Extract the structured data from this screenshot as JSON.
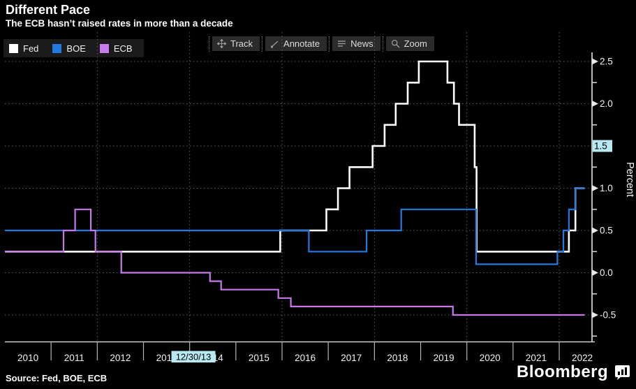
{
  "header": {
    "title": "Different Pace",
    "subtitle": "The ECB hasn’t raised rates in more than a decade"
  },
  "legend": [
    {
      "label": "Fed",
      "color": "#ffffff"
    },
    {
      "label": "BOE",
      "color": "#2379e0"
    },
    {
      "label": "ECB",
      "color": "#c97bed"
    }
  ],
  "toolbar": [
    {
      "label": "Track",
      "icon": "track-crosshair-icon"
    },
    {
      "label": "Annotate",
      "icon": "annotate-pencil-icon"
    },
    {
      "label": "News",
      "icon": "news-lines-icon"
    },
    {
      "label": "Zoom",
      "icon": "zoom-magnifier-icon"
    }
  ],
  "cursor": {
    "x_label": "12/30/13",
    "x_t": 2013.99,
    "y_label": "1.5",
    "y_v": 1.5,
    "highlight_color": "#b8e9f2"
  },
  "axes": {
    "y_axis": {
      "label": "Percent",
      "majors": [
        {
          "v": 2.5,
          "label": "2.5"
        },
        {
          "v": 2.0,
          "label": "2.0"
        },
        {
          "v": 1.5,
          "label": "1.5",
          "cursor": true
        },
        {
          "v": 1.0,
          "label": "1.0"
        },
        {
          "v": 0.5,
          "label": "0.5"
        },
        {
          "v": 0.0,
          "label": "0.0"
        },
        {
          "v": -0.5,
          "label": "-0.5"
        }
      ],
      "minors": [
        2.25,
        1.75,
        1.25,
        0.75,
        0.25,
        -0.25,
        -0.75
      ]
    },
    "x_axis": {
      "years": [
        {
          "t": 2010,
          "label": "2010"
        },
        {
          "t": 2011,
          "label": "2011"
        },
        {
          "t": 2012,
          "label": "2012"
        },
        {
          "t": 2013,
          "label": "2013"
        },
        {
          "t": 2014,
          "label": "2014"
        },
        {
          "t": 2015,
          "label": "2015"
        },
        {
          "t": 2016,
          "label": "2016"
        },
        {
          "t": 2017,
          "label": "2017"
        },
        {
          "t": 2018,
          "label": "2018"
        },
        {
          "t": 2019,
          "label": "2019"
        },
        {
          "t": 2020,
          "label": "2020"
        },
        {
          "t": 2021,
          "label": "2021"
        },
        {
          "t": 2022,
          "label": "2022"
        }
      ]
    },
    "grid": {
      "h_values": [
        2.5,
        2.0,
        1.5,
        1.0,
        0.5,
        0.0,
        -0.5
      ],
      "v_years": [
        2012,
        2014,
        2016,
        2018,
        2020,
        2022
      ]
    }
  },
  "chart_data": {
    "type": "line",
    "step": true,
    "title": "Different Pace",
    "ylabel": "Percent",
    "ylim": [
      -0.5,
      2.5
    ],
    "xlim": [
      2010,
      2022.55
    ],
    "x_end": 2022.55,
    "legend_position": "top-left",
    "grid": "dotted",
    "series": [
      {
        "name": "Fed",
        "color": "#ffffff",
        "points": [
          [
            2010.0,
            0.25
          ],
          [
            2015.96,
            0.5
          ],
          [
            2016.96,
            0.75
          ],
          [
            2017.21,
            1.0
          ],
          [
            2017.46,
            1.25
          ],
          [
            2017.96,
            1.5
          ],
          [
            2018.22,
            1.75
          ],
          [
            2018.46,
            2.0
          ],
          [
            2018.72,
            2.25
          ],
          [
            2018.96,
            2.5
          ],
          [
            2019.58,
            2.25
          ],
          [
            2019.72,
            2.0
          ],
          [
            2019.83,
            1.75
          ],
          [
            2020.17,
            1.25
          ],
          [
            2020.21,
            0.25
          ],
          [
            2022.21,
            0.5
          ],
          [
            2022.35,
            1.0
          ]
        ]
      },
      {
        "name": "BOE",
        "color": "#2379e0",
        "points": [
          [
            2010.0,
            0.5
          ],
          [
            2016.58,
            0.25
          ],
          [
            2017.83,
            0.5
          ],
          [
            2018.58,
            0.75
          ],
          [
            2020.2,
            0.1
          ],
          [
            2021.96,
            0.25
          ],
          [
            2022.09,
            0.5
          ],
          [
            2022.21,
            0.75
          ],
          [
            2022.35,
            1.0
          ]
        ]
      },
      {
        "name": "ECB",
        "color": "#c678e8",
        "points": [
          [
            2010.0,
            0.25
          ],
          [
            2011.27,
            0.5
          ],
          [
            2011.52,
            0.75
          ],
          [
            2011.86,
            0.5
          ],
          [
            2011.96,
            0.25
          ],
          [
            2012.52,
            0.0
          ],
          [
            2014.44,
            -0.1
          ],
          [
            2014.68,
            -0.2
          ],
          [
            2015.92,
            -0.3
          ],
          [
            2016.19,
            -0.4
          ],
          [
            2019.7,
            -0.5
          ]
        ]
      }
    ]
  },
  "source": "Source: Fed, BOE, ECB",
  "brand": {
    "name": "Bloomberg"
  }
}
